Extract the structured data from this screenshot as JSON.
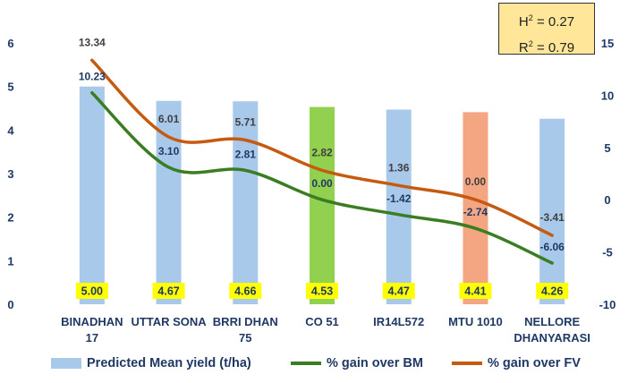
{
  "chart_data": {
    "type": "bar+line",
    "categories": [
      [
        "BINADHAN",
        "17"
      ],
      [
        "UTTAR SONA"
      ],
      [
        "BRRI DHAN",
        "75"
      ],
      [
        "CO 51"
      ],
      [
        "IR14L572"
      ],
      [
        "MTU 1010"
      ],
      [
        "NELLORE",
        "DHANYARASI"
      ]
    ],
    "bars": {
      "name": "Predicted Mean yield (t/ha)",
      "values": [
        5.0,
        4.67,
        4.66,
        4.53,
        4.47,
        4.41,
        4.26
      ],
      "labels": [
        "5.00",
        "4.67",
        "4.66",
        "4.53",
        "4.47",
        "4.41",
        "4.26"
      ],
      "colors": [
        "#a9c9eb",
        "#a9c9eb",
        "#a9c9eb",
        "#92d050",
        "#a9c9eb",
        "#f4a582",
        "#a9c9eb"
      ],
      "label_bg": "#ffff00"
    },
    "series": [
      {
        "name": "% gain over BM",
        "values": [
          10.23,
          3.1,
          2.81,
          0.0,
          -1.42,
          -2.74,
          -6.06
        ],
        "labels": [
          "10.23",
          "3.10",
          "2.81",
          "0.00",
          "-1.42",
          "-2.74",
          "-6.06"
        ],
        "color": "#3a7d22",
        "label_color": "#1f3864"
      },
      {
        "name": "% gain over FV",
        "values": [
          13.34,
          6.01,
          5.71,
          2.82,
          1.36,
          0.0,
          -3.41
        ],
        "labels": [
          "13.34",
          "6.01",
          "5.71",
          "2.82",
          "1.36",
          "0.00",
          "-3.41"
        ],
        "color": "#c55a11",
        "label_color": "#404040"
      }
    ],
    "y_left": {
      "min": 0,
      "max": 6,
      "ticks": [
        "0",
        "1",
        "2",
        "3",
        "4",
        "5",
        "6"
      ]
    },
    "y_right": {
      "min": -10,
      "max": 15,
      "ticks": [
        "-10",
        "-5",
        "0",
        "5",
        "10",
        "15"
      ]
    },
    "legend_position": "bottom",
    "annotation": {
      "h2_label": "H",
      "h2_value": " = 0.27",
      "r2_label": "R",
      "r2_value": " = 0.79",
      "exponent": "2"
    }
  }
}
